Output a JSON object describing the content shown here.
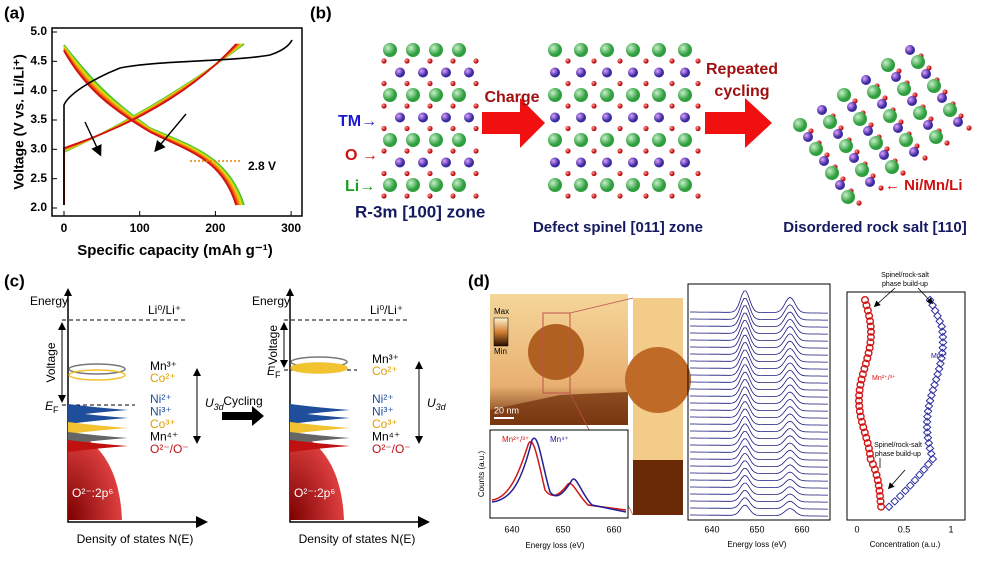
{
  "panel_a": {
    "label": "(a)",
    "y_axis_label": "Voltage (V vs. Li/Li⁺)",
    "x_axis_label": "Specific capacity (mAh g⁻¹)",
    "y_ticks": [
      "2.0",
      "2.5",
      "3.0",
      "3.5",
      "4.0",
      "4.5",
      "5.0"
    ],
    "x_ticks": [
      "0",
      "100",
      "200",
      "300"
    ],
    "annotation": "2.8 V"
  },
  "panel_b": {
    "label": "(b)",
    "site_labels": [
      "TM→",
      "O →",
      "Li→"
    ],
    "zones": [
      "R-3m [100] zone",
      "Defect spinel [011] zone",
      "Disordered rock salt [110]"
    ],
    "arrows": {
      "charge": "Charge",
      "cycling": [
        "Repeated",
        "cycling"
      ]
    },
    "callout": "← Ni/Mn/Li"
  },
  "panel_c": {
    "label": "(c)",
    "cycling": "Cycling",
    "diagrams": [
      {
        "energy": "Energy",
        "reference": "Li⁰/Li⁺",
        "voltage": "Voltage",
        "fermi": {
          "symbol": "E",
          "subscript": "F"
        },
        "upper_states": [
          "Mn³⁺",
          "Co²⁺"
        ],
        "lower_states": [
          "Ni²⁺",
          "Ni³⁺",
          "Co³⁺",
          "Mn⁴⁺",
          "O²⁻/O⁻"
        ],
        "hubbard": {
          "symbol": "U",
          "subscript": "3d"
        },
        "band": "O²⁻:2p⁶",
        "x_axis_label": "Density of states N(E)"
      },
      {
        "energy": "Energy",
        "reference": "Li⁰/Li⁺",
        "voltage": "Voltage",
        "fermi": {
          "symbol": "E",
          "subscript": "F"
        },
        "upper_states": [
          "Mn³⁺",
          "Co²⁺"
        ],
        "lower_states": [
          "Ni²⁺",
          "Ni³⁺",
          "Co³⁺",
          "Mn⁴⁺",
          "O²⁻/O⁻"
        ],
        "hubbard": {
          "symbol": "U",
          "subscript": "3d"
        },
        "band": "O²⁻:2p⁶",
        "x_axis_label": "Density of states N(E)"
      }
    ]
  },
  "panel_d": {
    "label": "(d)",
    "colorbar": [
      "Max",
      "Min"
    ],
    "scale_bar": "20 nm",
    "spectrum": {
      "y_axis_label": "Counts (a.u.)",
      "x_axis_label": "Energy loss (eV)",
      "x_ticks": [
        "640",
        "650",
        "660"
      ],
      "legend": [
        "Mn²⁺/³⁺",
        "Mn⁴⁺"
      ]
    },
    "stack": {
      "x_axis_label": "Energy loss (eV)",
      "x_ticks": [
        "640",
        "650",
        "660"
      ]
    },
    "profile": {
      "annotations": [
        [
          "Spinel/rock-salt",
          "phase build-up"
        ],
        [
          "Spinel/rock-salt",
          "phase build-up"
        ]
      ],
      "legend": [
        "Mn⁴⁺",
        "Mn²⁺/³⁺"
      ],
      "x_axis_label": "Concentration (a.u.)",
      "x_ticks": [
        "0",
        "0.5",
        "1"
      ]
    }
  }
}
